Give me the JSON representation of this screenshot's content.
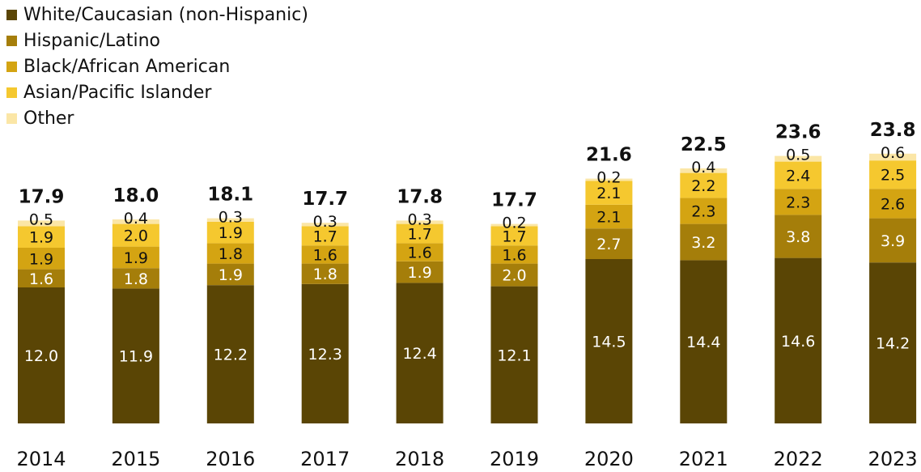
{
  "chart_data": {
    "type": "bar",
    "stacked": true,
    "categories": [
      "2014",
      "2015",
      "2016",
      "2017",
      "2018",
      "2019",
      "2020",
      "2021",
      "2022",
      "2023"
    ],
    "series": [
      {
        "name": "White/Caucasian (non-Hispanic)",
        "color": "#5A4505",
        "label_color": "#ffffff",
        "values": [
          12.0,
          11.9,
          12.2,
          12.3,
          12.4,
          12.1,
          14.5,
          14.4,
          14.6,
          14.2
        ]
      },
      {
        "name": "Hispanic/Latino",
        "color": "#A57E0A",
        "label_color": "#ffffff",
        "values": [
          1.6,
          1.8,
          1.9,
          1.8,
          1.9,
          2.0,
          2.7,
          3.2,
          3.8,
          3.9
        ]
      },
      {
        "name": "Black/African American",
        "color": "#D4A412",
        "label_color": "#111111",
        "values": [
          1.9,
          1.9,
          1.8,
          1.6,
          1.6,
          1.6,
          2.1,
          2.3,
          2.3,
          2.6
        ]
      },
      {
        "name": "Asian/Pacific Islander",
        "color": "#F5C82F",
        "label_color": "#111111",
        "values": [
          1.9,
          2.0,
          1.9,
          1.7,
          1.7,
          1.7,
          2.1,
          2.2,
          2.4,
          2.5
        ]
      },
      {
        "name": "Other",
        "color": "#FBE6A6",
        "label_color": "#111111",
        "values": [
          0.5,
          0.4,
          0.3,
          0.3,
          0.3,
          0.2,
          0.2,
          0.4,
          0.5,
          0.6
        ]
      }
    ],
    "totals": [
      "17.9",
      "18.0",
      "18.1",
      "17.7",
      "17.8",
      "17.7",
      "21.6",
      "22.5",
      "23.6",
      "23.8"
    ],
    "title": "",
    "xlabel": "",
    "ylabel": "",
    "ylim": [
      0,
      24
    ],
    "grid": false,
    "legend_position": "top-left"
  }
}
